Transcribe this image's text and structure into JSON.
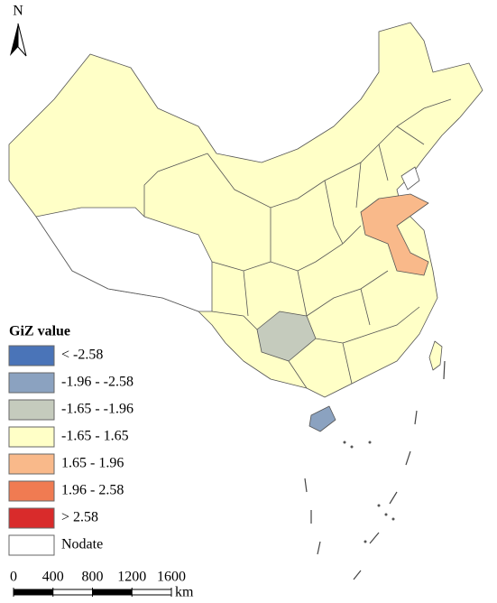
{
  "north": "N",
  "legend": {
    "title": "GiZ value",
    "items": [
      {
        "label": "< -2.58",
        "color": "#4a74b8"
      },
      {
        "label": "-1.96 - -2.58",
        "color": "#8ba2c0"
      },
      {
        "label": "-1.65 - -1.96",
        "color": "#c5cbbd"
      },
      {
        "label": "-1.65 - 1.65",
        "color": "#ffffc7"
      },
      {
        "label": "1.65 - 1.96",
        "color": "#f9b98a"
      },
      {
        "label": "1.96 - 2.58",
        "color": "#f07b52"
      },
      {
        "label": "> 2.58",
        "color": "#d92b2b"
      },
      {
        "label": "Nodate",
        "color": "#ffffff"
      }
    ]
  },
  "scale_bar": {
    "ticks": [
      0,
      400,
      800,
      1200,
      1600
    ],
    "unit": "km"
  }
}
